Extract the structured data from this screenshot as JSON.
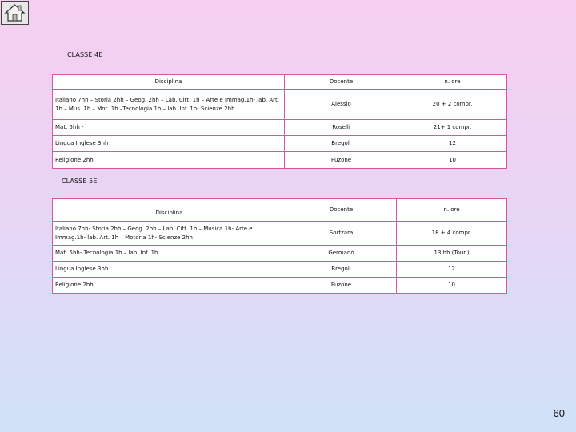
{
  "page_number": "60",
  "home_button_icon": "home-icon",
  "accent_border_color": "#d9559e",
  "class4": {
    "title": "CLASSE 4E",
    "headers": [
      "Disciplina",
      "Docente",
      "n. ore"
    ],
    "rows": [
      {
        "subject": "Italiano 7hh – Storia 2hh – Geog. 2hh – Lab. Citt. 1h – Arte e Immag.1h- lab. Art. 1h – Mus. 1h – Mot. 1h –Tecnologia 1h – lab. Inf. 1h- Scienze 2hh",
        "teacher": "Alessio",
        "hours": "20 + 2 compr."
      },
      {
        "subject": "Mat. 5hh -",
        "teacher": "Roselli",
        "hours": "21+ 1 compr."
      },
      {
        "subject": "Lingua Inglese 3hh",
        "teacher": "Bregoli",
        "hours": "12"
      },
      {
        "subject": "Religione 2hh",
        "teacher": "Puzone",
        "hours": "10"
      }
    ]
  },
  "class5": {
    "title": "CLASSE 5E",
    "headers": [
      "Disciplina",
      "Docente",
      "n. ore"
    ],
    "rows": [
      {
        "subject": "Italiano 7hh- Storia 2hh – Geog. 2hh – Lab. Citt. 1h – Musica 1h- Arte e Immag.1h- lab. Art. 1h – Motoria 1h- Scienze 2hh",
        "teacher": "Sortzara",
        "hours": "18 + 4 compr."
      },
      {
        "subject": "Mat. 5hh- Tecnologia 1h – lab. Inf. 1h",
        "teacher": "Germanò",
        "hours": "13 hh (Tour.)"
      },
      {
        "subject": "Lingua Inglese 3hh",
        "teacher": "Bregoli",
        "hours": "12"
      },
      {
        "subject": "Religione 2hh",
        "teacher": "Puzone",
        "hours": "10"
      }
    ]
  }
}
